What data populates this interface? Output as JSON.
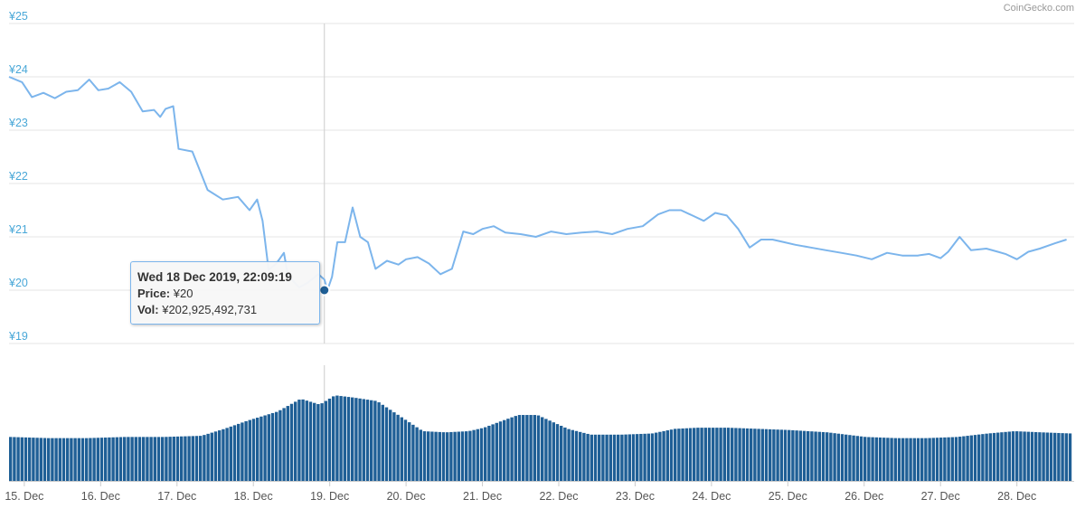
{
  "credit": "CoinGecko.com",
  "tooltip": {
    "date": "Wed 18 Dec 2019, 22:09:19",
    "price_label": "Price:",
    "price_value": "¥20",
    "vol_label": "Vol:",
    "vol_value": "¥202,925,492,731"
  },
  "colors": {
    "line": "#7cb5ec",
    "bar": "#1f5f96",
    "axis": "#4aa8d8",
    "grid": "#e6e6e6",
    "crosshair": "#cccccc",
    "marker": "#1f5f96"
  },
  "chart_data": [
    {
      "type": "line",
      "title": "",
      "series": [
        {
          "name": "Price",
          "x": [
            14.8,
            14.97,
            15.1,
            15.25,
            15.4,
            15.55,
            15.7,
            15.85,
            15.97,
            16.1,
            16.25,
            16.4,
            16.55,
            16.7,
            16.78,
            16.85,
            16.95,
            17.02,
            17.2,
            17.4,
            17.6,
            17.8,
            17.95,
            18.05,
            18.12,
            18.2,
            18.3,
            18.4,
            18.45,
            18.5,
            18.6,
            18.72,
            18.85,
            18.93,
            18.97,
            19.03,
            19.1,
            19.2,
            19.3,
            19.4,
            19.5,
            19.6,
            19.75,
            19.9,
            20.0,
            20.15,
            20.3,
            20.45,
            20.6,
            20.75,
            20.88,
            21.0,
            21.15,
            21.3,
            21.5,
            21.7,
            21.9,
            22.1,
            22.3,
            22.5,
            22.7,
            22.9,
            23.1,
            23.3,
            23.45,
            23.6,
            23.75,
            23.9,
            24.05,
            24.2,
            24.35,
            24.5,
            24.65,
            24.8,
            24.95,
            25.1,
            25.3,
            25.5,
            25.7,
            25.9,
            26.1,
            26.3,
            26.5,
            26.7,
            26.85,
            27.0,
            27.1,
            27.25,
            27.4,
            27.6,
            27.75,
            27.85,
            28.0,
            28.15,
            28.3,
            28.5,
            28.65
          ],
          "y": [
            24.0,
            23.9,
            23.62,
            23.7,
            23.6,
            23.72,
            23.75,
            23.95,
            23.75,
            23.78,
            23.9,
            23.72,
            23.35,
            23.38,
            23.25,
            23.4,
            23.45,
            22.65,
            22.6,
            21.88,
            21.7,
            21.75,
            21.5,
            21.7,
            21.3,
            20.38,
            20.5,
            20.7,
            20.3,
            20.2,
            20.05,
            20.15,
            20.3,
            20.2,
            20.0,
            20.25,
            20.9,
            20.9,
            21.55,
            21.0,
            20.9,
            20.4,
            20.55,
            20.48,
            20.58,
            20.62,
            20.5,
            20.3,
            20.4,
            21.1,
            21.05,
            21.15,
            21.2,
            21.08,
            21.05,
            21.0,
            21.1,
            21.05,
            21.08,
            21.1,
            21.05,
            21.15,
            21.2,
            21.42,
            21.5,
            21.5,
            21.4,
            21.3,
            21.45,
            21.4,
            21.15,
            20.8,
            20.95,
            20.95,
            20.9,
            20.85,
            20.8,
            20.75,
            20.7,
            20.65,
            20.58,
            20.7,
            20.65,
            20.65,
            20.68,
            20.6,
            20.72,
            21.0,
            20.75,
            20.78,
            20.72,
            20.68,
            20.58,
            20.72,
            20.78,
            20.88,
            20.95
          ],
          "color": "#7cb5ec"
        }
      ],
      "ylim": [
        19,
        25
      ],
      "yticks": [
        "¥25",
        "¥24",
        "¥23",
        "¥22",
        "¥21",
        "¥20",
        "¥19"
      ],
      "ytick_values": [
        25,
        24,
        23,
        22,
        21,
        20,
        19
      ],
      "grid": true,
      "highlight": {
        "x": 18.93,
        "y": 20
      }
    },
    {
      "type": "bar",
      "title": "",
      "series": [
        {
          "name": "Vol",
          "x": [
            14.8,
            15.3,
            15.8,
            16.3,
            16.8,
            17.3,
            17.6,
            17.9,
            18.1,
            18.3,
            18.6,
            18.85,
            19.05,
            19.3,
            19.6,
            19.9,
            20.2,
            20.5,
            20.8,
            21.0,
            21.2,
            21.45,
            21.7,
            21.9,
            22.1,
            22.4,
            22.8,
            23.2,
            23.5,
            23.8,
            24.2,
            24.6,
            25.0,
            25.5,
            26.0,
            26.4,
            26.8,
            27.2,
            27.6,
            27.95,
            28.3,
            28.7
          ],
          "y": [
            0.38,
            0.37,
            0.37,
            0.38,
            0.38,
            0.39,
            0.45,
            0.52,
            0.56,
            0.6,
            0.71,
            0.66,
            0.74,
            0.72,
            0.69,
            0.56,
            0.43,
            0.42,
            0.43,
            0.46,
            0.51,
            0.57,
            0.57,
            0.51,
            0.45,
            0.4,
            0.4,
            0.41,
            0.45,
            0.46,
            0.46,
            0.45,
            0.44,
            0.42,
            0.38,
            0.37,
            0.37,
            0.38,
            0.41,
            0.43,
            0.42,
            0.41
          ],
          "color": "#1f5f96"
        }
      ]
    }
  ],
  "xaxis": {
    "ticks": [
      "15. Dec",
      "16. Dec",
      "17. Dec",
      "18. Dec",
      "19. Dec",
      "20. Dec",
      "21. Dec",
      "22. Dec",
      "23. Dec",
      "24. Dec",
      "25. Dec",
      "26. Dec",
      "27. Dec",
      "28. Dec"
    ],
    "tick_values": [
      15,
      16,
      17,
      18,
      19,
      20,
      21,
      22,
      23,
      24,
      25,
      26,
      27,
      28
    ],
    "range": [
      14.8,
      28.75
    ]
  }
}
